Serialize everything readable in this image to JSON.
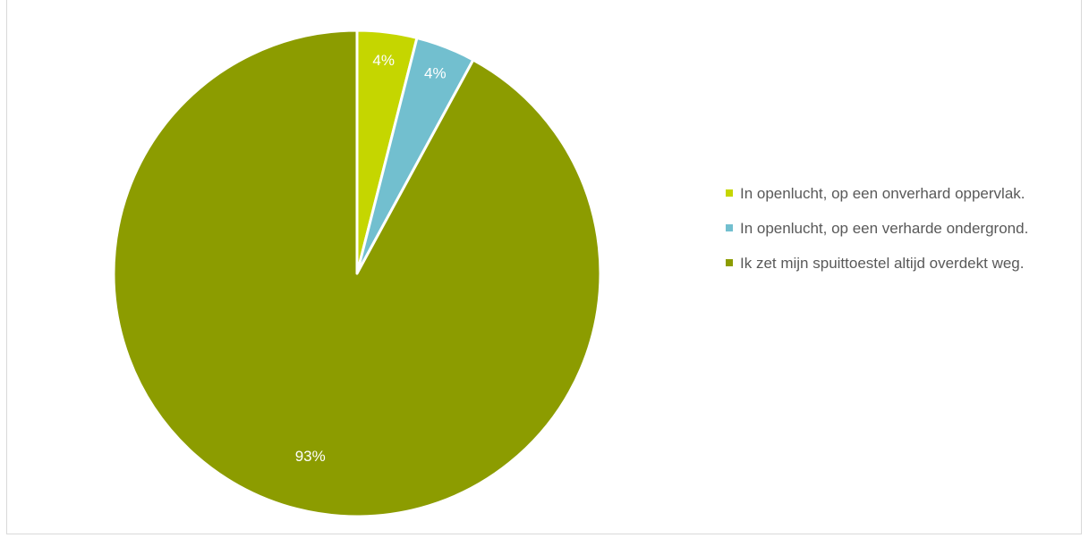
{
  "chart_data": {
    "type": "pie",
    "title": "",
    "slices": [
      {
        "label": "In openlucht, op een onverhard oppervlak.",
        "value": 4,
        "display": "4%",
        "color": "#c5d600"
      },
      {
        "label": "In openlucht, op een verharde ondergrond.",
        "value": 4,
        "display": "4%",
        "color": "#72bfcf"
      },
      {
        "label": "Ik zet mijn spuittoestel altijd overdekt weg.",
        "value": 93,
        "display": "93%",
        "color": "#8c9c00"
      }
    ],
    "start_angle_deg": 0,
    "direction": "clockwise",
    "legend_position": "right",
    "data_labels": true
  }
}
